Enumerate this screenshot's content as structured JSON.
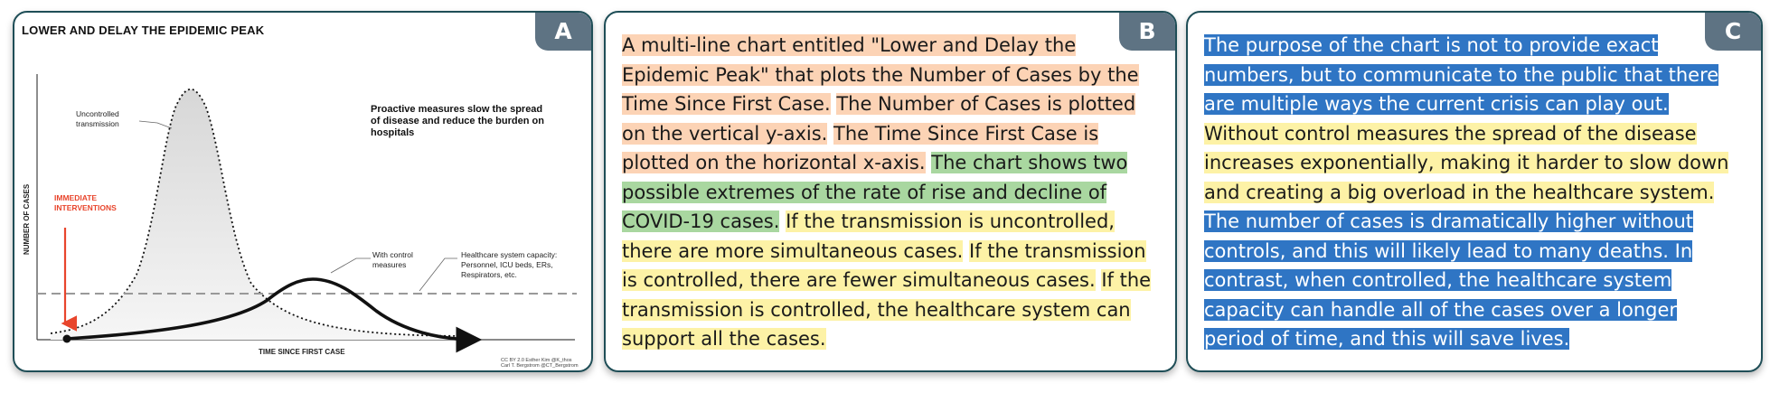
{
  "panel_a": {
    "badge": "A",
    "chart_title": "LOWER AND DELAY THE EPIDEMIC PEAK",
    "proactive_note": [
      "Proactive measures slow the spread",
      "of disease and reduce the burden on",
      "hospitals"
    ],
    "label_uncontrolled": [
      "Uncontrolled",
      "transmission"
    ],
    "label_interventions": [
      "IMMEDIATE",
      "INTERVENTIONS"
    ],
    "label_with_control": [
      "With control",
      "measures"
    ],
    "label_capacity": [
      "Healthcare system capacity:",
      "Personnel, ICU beds, ERs,",
      "Respirators, etc."
    ],
    "ylabel": "NUMBER OF CASES",
    "xlabel": "TIME SINCE FIRST CASE",
    "credit": [
      "CC BY 2.0  Esther Kim @K_thos",
      "Carl T. Bergstrom @CT_Bergstrom"
    ]
  },
  "panel_b": {
    "badge": "B",
    "segments": [
      {
        "text": "A multi-line chart entitled \"Lower and Delay the Epidemic Peak\" that plots the Number of Cases by the Time Since First Case.",
        "highlight": "orange"
      },
      {
        "text": " ",
        "highlight": "none"
      },
      {
        "text": "The Number of Cases is plotted on the vertical y-axis.",
        "highlight": "orange"
      },
      {
        "text": " ",
        "highlight": "none"
      },
      {
        "text": "The Time Since First Case is plotted on the horizontal x-axis.",
        "highlight": "orange"
      },
      {
        "text": " ",
        "highlight": "none"
      },
      {
        "text": "The chart shows two possible extremes of the rate of rise and decline of COVID-19 cases.",
        "highlight": "green"
      },
      {
        "text": " ",
        "highlight": "none"
      },
      {
        "text": "If the transmission is uncontrolled, there are more simultaneous cases.",
        "highlight": "yellow"
      },
      {
        "text": " ",
        "highlight": "none"
      },
      {
        "text": "If the transmission is controlled, there are fewer simultaneous cases.",
        "highlight": "yellow"
      },
      {
        "text": " ",
        "highlight": "none"
      },
      {
        "text": "If the transmission is controlled, the healthcare system can support all the cases.",
        "highlight": "yellow"
      }
    ]
  },
  "panel_c": {
    "badge": "C",
    "segments": [
      {
        "text": "The purpose of the chart is not to provide exact numbers, but to communicate to the public that there are multiple ways the current crisis can play out.",
        "highlight": "blue"
      },
      {
        "text": " ",
        "highlight": "none"
      },
      {
        "text": " Without control measures the spread of the disease increases exponentially, making it harder to slow down and creating a big overload in the healthcare system.",
        "highlight": "yellow"
      },
      {
        "text": "  ",
        "highlight": "none"
      },
      {
        "text": "The number of cases is dramatically higher without controls, and this will likely lead to many deaths. In contrast, when controlled, the healthcare system capacity can handle all of the cases over a longer period of time, and this will save lives.",
        "highlight": "blue"
      }
    ]
  },
  "colors": {
    "border": "#1f4e57",
    "badge": "#5e7383",
    "orange": "#fcd3b5",
    "green": "#a9d7a0",
    "yellow": "#fdf2a6",
    "blue": "#2f75c4",
    "intervention": "#e8452c"
  }
}
